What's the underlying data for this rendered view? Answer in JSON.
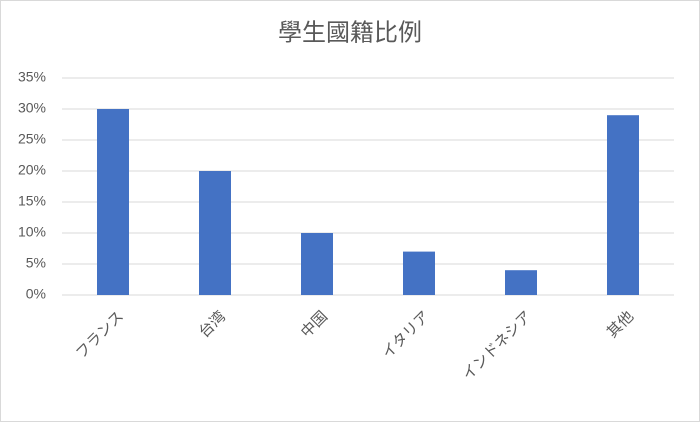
{
  "chart_data": {
    "type": "bar",
    "title": "學生國籍比例",
    "categories": [
      "フランス",
      "台湾",
      "中国",
      "イタリア",
      "インドネシア",
      "其他"
    ],
    "values": [
      30,
      20,
      10,
      7,
      4,
      29
    ],
    "color": "#4472c4",
    "ylim": [
      0,
      35
    ],
    "yticks": [
      {
        "value": 0,
        "label": "0%"
      },
      {
        "value": 5,
        "label": "5%"
      },
      {
        "value": 10,
        "label": "10%"
      },
      {
        "value": 15,
        "label": "15%"
      },
      {
        "value": 20,
        "label": "20%"
      },
      {
        "value": 25,
        "label": "25%"
      },
      {
        "value": 30,
        "label": "30%"
      },
      {
        "value": 35,
        "label": "35%"
      }
    ],
    "grid": true
  }
}
